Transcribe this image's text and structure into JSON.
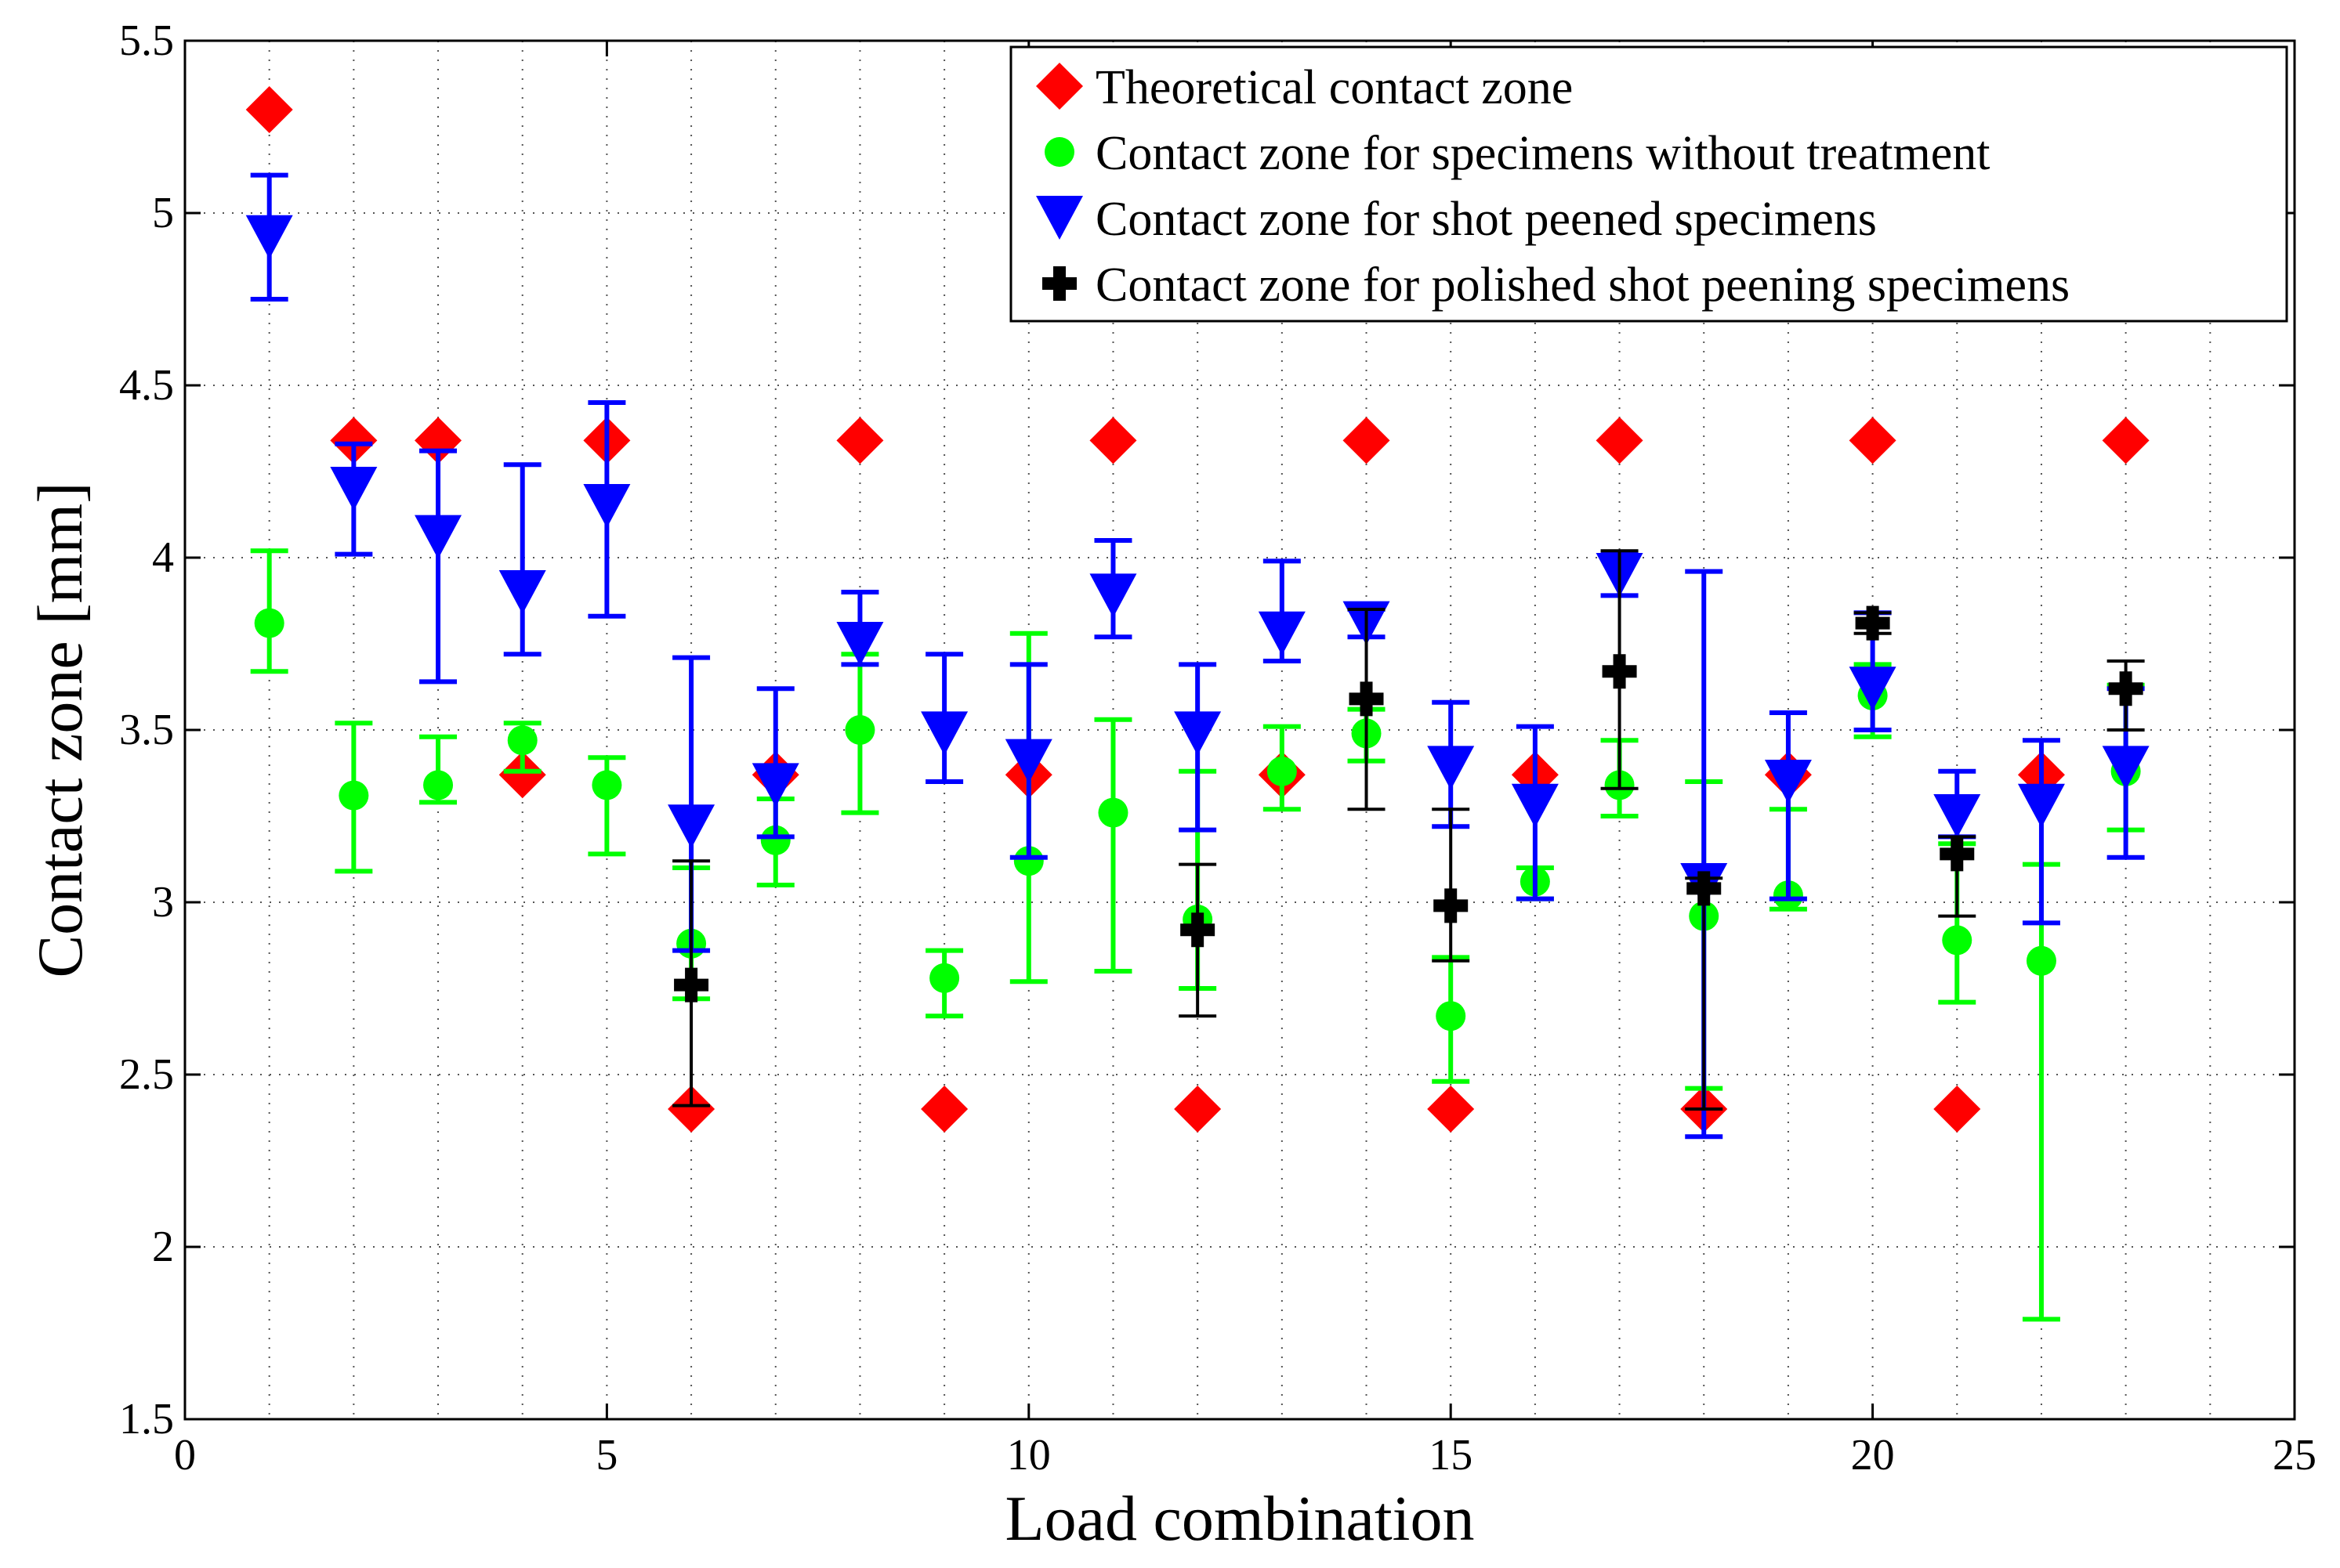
{
  "chart_data": {
    "type": "scatter",
    "title": "",
    "xlabel": "Load combination",
    "ylabel": "Contact zone [mm]",
    "xlim": [
      0,
      25
    ],
    "ylim": [
      1.5,
      5.5
    ],
    "xticks": [
      0,
      5,
      10,
      15,
      20,
      25
    ],
    "yticks": [
      1.5,
      2,
      2.5,
      3,
      3.5,
      4,
      4.5,
      5,
      5.5
    ],
    "x_tick_labels": [
      "0",
      "5",
      "10",
      "15",
      "20",
      "25"
    ],
    "y_tick_labels": [
      "1.5",
      "2",
      "2.5",
      "3",
      "3.5",
      "4",
      "4.5",
      "5",
      "5.5"
    ],
    "grid": true,
    "legend_position": "top-right",
    "series": [
      {
        "name": "Theoretical contact zone",
        "marker": "diamond",
        "color": "#ff0000",
        "points": [
          {
            "x": 1,
            "y": 5.3
          },
          {
            "x": 2,
            "y": 4.34
          },
          {
            "x": 3,
            "y": 4.34
          },
          {
            "x": 4,
            "y": 3.37
          },
          {
            "x": 5,
            "y": 4.34
          },
          {
            "x": 6,
            "y": 2.4
          },
          {
            "x": 7,
            "y": 3.37
          },
          {
            "x": 8,
            "y": 4.34
          },
          {
            "x": 9,
            "y": 2.4
          },
          {
            "x": 10,
            "y": 3.37
          },
          {
            "x": 11,
            "y": 4.34
          },
          {
            "x": 12,
            "y": 2.4
          },
          {
            "x": 13,
            "y": 3.37
          },
          {
            "x": 14,
            "y": 4.34
          },
          {
            "x": 15,
            "y": 2.4
          },
          {
            "x": 16,
            "y": 3.37
          },
          {
            "x": 17,
            "y": 4.34
          },
          {
            "x": 18,
            "y": 2.4
          },
          {
            "x": 19,
            "y": 3.37
          },
          {
            "x": 20,
            "y": 4.34
          },
          {
            "x": 21,
            "y": 2.4
          },
          {
            "x": 22,
            "y": 3.37
          },
          {
            "x": 23,
            "y": 4.34
          }
        ]
      },
      {
        "name": "Contact zone for specimens without treatment",
        "marker": "circle",
        "color": "#00ff00",
        "points": [
          {
            "x": 1,
            "y": 3.81,
            "lo": 3.67,
            "hi": 4.02
          },
          {
            "x": 2,
            "y": 3.31,
            "lo": 3.09,
            "hi": 3.52
          },
          {
            "x": 3,
            "y": 3.34,
            "lo": 3.29,
            "hi": 3.48
          },
          {
            "x": 4,
            "y": 3.47,
            "lo": 3.38,
            "hi": 3.52
          },
          {
            "x": 5,
            "y": 3.34,
            "lo": 3.14,
            "hi": 3.42
          },
          {
            "x": 6,
            "y": 2.88,
            "lo": 2.72,
            "hi": 3.1
          },
          {
            "x": 7,
            "y": 3.18,
            "lo": 3.05,
            "hi": 3.3
          },
          {
            "x": 8,
            "y": 3.5,
            "lo": 3.26,
            "hi": 3.72
          },
          {
            "x": 9,
            "y": 2.78,
            "lo": 2.67,
            "hi": 2.86
          },
          {
            "x": 10,
            "y": 3.12,
            "lo": 2.77,
            "hi": 3.78
          },
          {
            "x": 11,
            "y": 3.26,
            "lo": 2.8,
            "hi": 3.53
          },
          {
            "x": 12,
            "y": 2.95,
            "lo": 2.75,
            "hi": 3.38
          },
          {
            "x": 13,
            "y": 3.38,
            "lo": 3.27,
            "hi": 3.51
          },
          {
            "x": 14,
            "y": 3.49,
            "lo": 3.41,
            "hi": 3.56
          },
          {
            "x": 15,
            "y": 2.67,
            "lo": 2.48,
            "hi": 2.84
          },
          {
            "x": 16,
            "y": 3.06,
            "lo": 3.01,
            "hi": 3.1
          },
          {
            "x": 17,
            "y": 3.34,
            "lo": 3.25,
            "hi": 3.47
          },
          {
            "x": 18,
            "y": 2.96,
            "lo": 2.46,
            "hi": 3.35
          },
          {
            "x": 19,
            "y": 3.02,
            "lo": 2.98,
            "hi": 3.27
          },
          {
            "x": 20,
            "y": 3.6,
            "lo": 3.48,
            "hi": 3.69
          },
          {
            "x": 21,
            "y": 2.89,
            "lo": 2.71,
            "hi": 3.17
          },
          {
            "x": 22,
            "y": 2.83,
            "lo": 1.79,
            "hi": 3.11
          },
          {
            "x": 23,
            "y": 3.38,
            "lo": 3.21,
            "hi": 3.63
          }
        ]
      },
      {
        "name": "Contact zone for shot peened specimens",
        "marker": "triangle-down",
        "color": "#0000ff",
        "points": [
          {
            "x": 1,
            "y": 4.93,
            "lo": 4.75,
            "hi": 5.11
          },
          {
            "x": 2,
            "y": 4.2,
            "lo": 4.01,
            "hi": 4.33
          },
          {
            "x": 3,
            "y": 4.06,
            "lo": 3.64,
            "hi": 4.31
          },
          {
            "x": 4,
            "y": 3.9,
            "lo": 3.72,
            "hi": 4.27
          },
          {
            "x": 5,
            "y": 4.15,
            "lo": 3.83,
            "hi": 4.45
          },
          {
            "x": 6,
            "y": 3.22,
            "lo": 2.86,
            "hi": 3.71
          },
          {
            "x": 7,
            "y": 3.34,
            "lo": 3.19,
            "hi": 3.62
          },
          {
            "x": 8,
            "y": 3.75,
            "lo": 3.69,
            "hi": 3.9
          },
          {
            "x": 9,
            "y": 3.49,
            "lo": 3.35,
            "hi": 3.72
          },
          {
            "x": 10,
            "y": 3.41,
            "lo": 3.13,
            "hi": 3.69
          },
          {
            "x": 11,
            "y": 3.89,
            "lo": 3.77,
            "hi": 4.05
          },
          {
            "x": 12,
            "y": 3.49,
            "lo": 3.21,
            "hi": 3.69
          },
          {
            "x": 13,
            "y": 3.78,
            "lo": 3.7,
            "hi": 3.99
          },
          {
            "x": 14,
            "y": 3.81,
            "lo": 3.77,
            "hi": 3.85
          },
          {
            "x": 15,
            "y": 3.39,
            "lo": 3.22,
            "hi": 3.58
          },
          {
            "x": 16,
            "y": 3.28,
            "lo": 3.01,
            "hi": 3.51
          },
          {
            "x": 17,
            "y": 3.95,
            "lo": 3.89,
            "hi": 4.01
          },
          {
            "x": 18,
            "y": 3.05,
            "lo": 2.32,
            "hi": 3.96
          },
          {
            "x": 19,
            "y": 3.35,
            "lo": 3.01,
            "hi": 3.55
          },
          {
            "x": 20,
            "y": 3.62,
            "lo": 3.5,
            "hi": 3.84
          },
          {
            "x": 21,
            "y": 3.25,
            "lo": 3.19,
            "hi": 3.38
          },
          {
            "x": 22,
            "y": 3.28,
            "lo": 2.94,
            "hi": 3.47
          },
          {
            "x": 23,
            "y": 3.39,
            "lo": 3.13,
            "hi": 3.62
          }
        ]
      },
      {
        "name": "Contact zone for polished shot peening specimens",
        "marker": "plus",
        "color": "#000000",
        "points": [
          {
            "x": 6,
            "y": 2.76,
            "lo": 2.41,
            "hi": 3.12
          },
          {
            "x": 12,
            "y": 2.92,
            "lo": 2.67,
            "hi": 3.11
          },
          {
            "x": 14,
            "y": 3.59,
            "lo": 3.27,
            "hi": 3.85
          },
          {
            "x": 15,
            "y": 2.99,
            "lo": 2.83,
            "hi": 3.27
          },
          {
            "x": 17,
            "y": 3.67,
            "lo": 3.33,
            "hi": 4.02
          },
          {
            "x": 18,
            "y": 3.04,
            "lo": 2.4,
            "hi": 3.07
          },
          {
            "x": 20,
            "y": 3.81,
            "lo": 3.78,
            "hi": 3.84
          },
          {
            "x": 21,
            "y": 3.14,
            "lo": 2.96,
            "hi": 3.19
          },
          {
            "x": 23,
            "y": 3.62,
            "lo": 3.5,
            "hi": 3.7
          }
        ]
      }
    ]
  }
}
